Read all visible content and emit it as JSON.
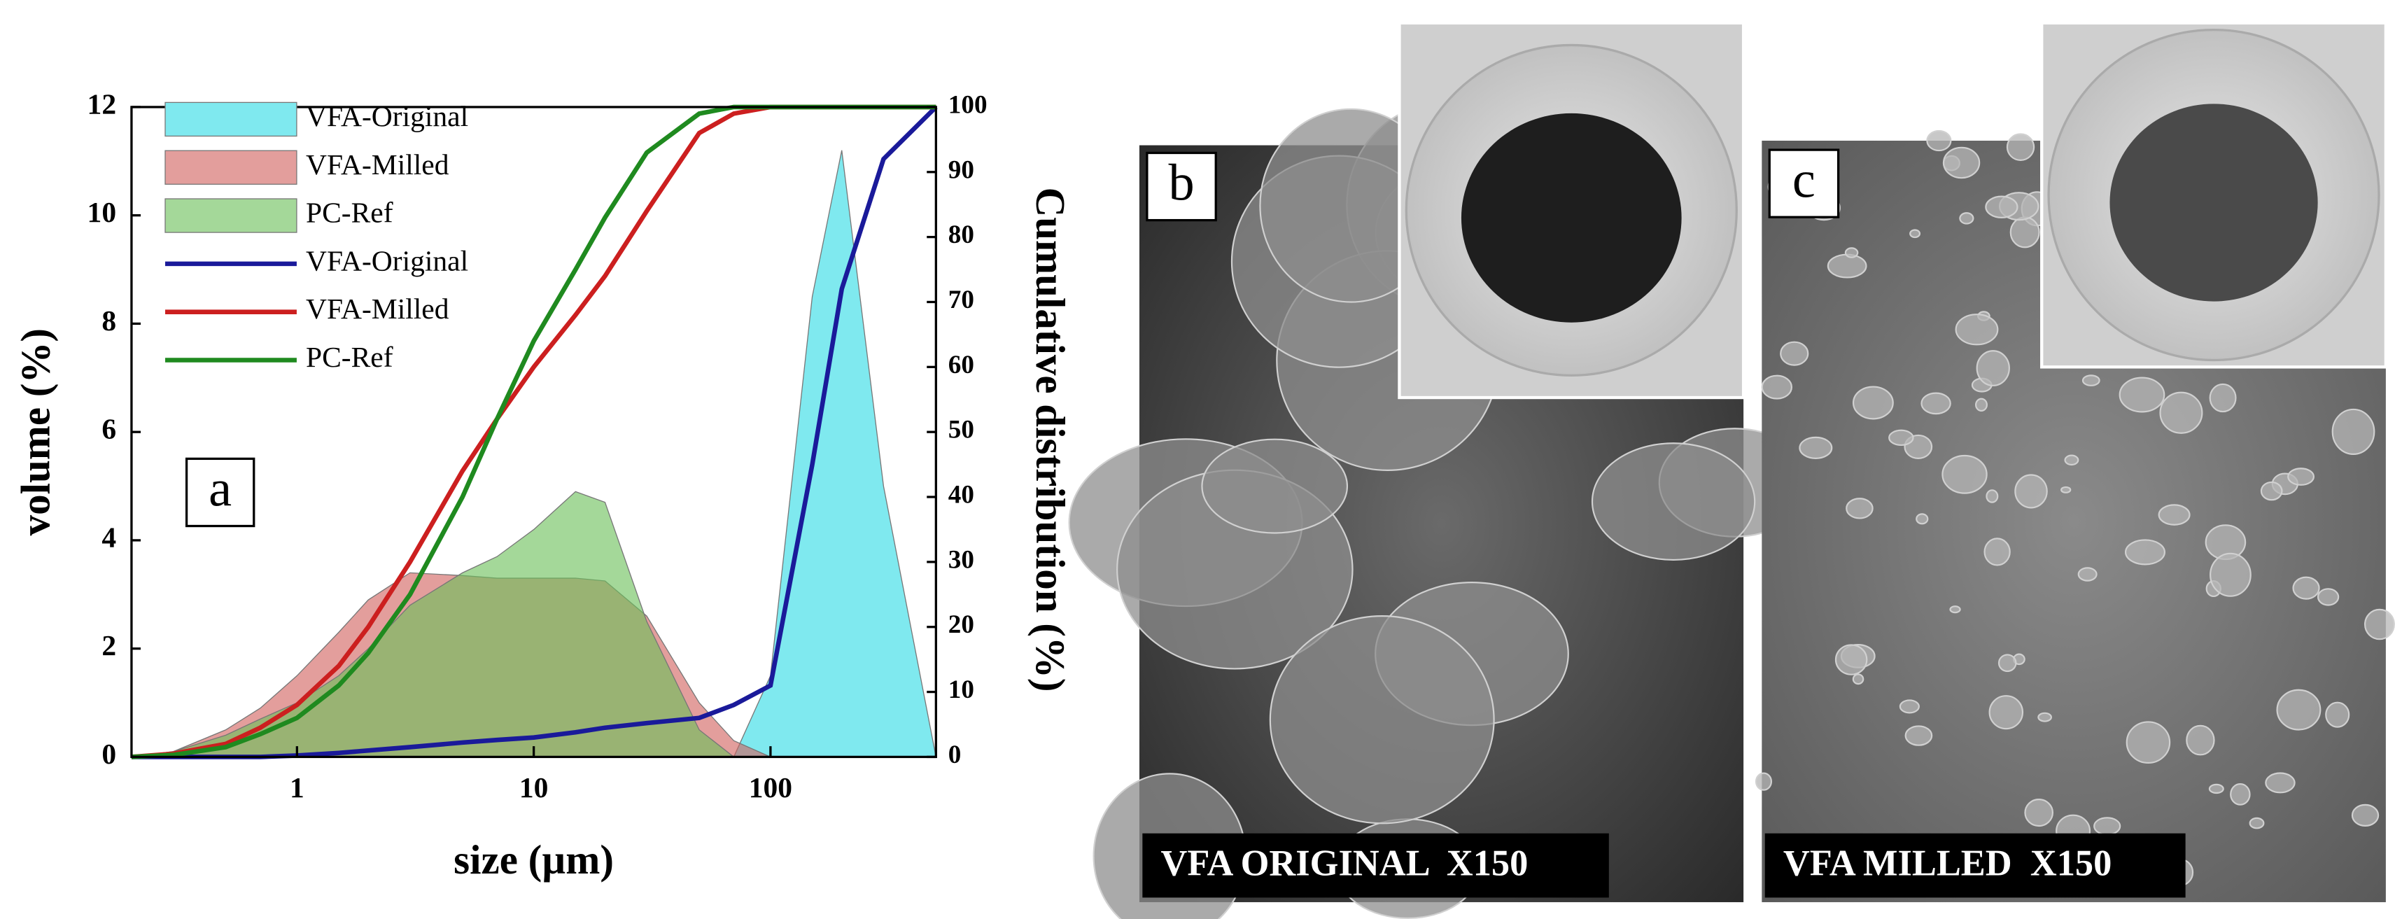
{
  "chart_data": {
    "type": "line",
    "panel_label": "a",
    "x_label": "size (µm)",
    "y_label": "volume (%)",
    "y2_label": "Cumulative distribution (%)",
    "x_log": true,
    "xlim": [
      0.2,
      500
    ],
    "xticks": [
      1,
      10,
      100
    ],
    "ylim": [
      0,
      12
    ],
    "yticks": [
      0,
      2,
      4,
      6,
      8,
      10,
      12
    ],
    "y2lim": [
      0,
      100
    ],
    "y2ticks": [
      0,
      10,
      20,
      30,
      40,
      50,
      60,
      70,
      80,
      90,
      100
    ],
    "legend": "upper-left",
    "x": [
      0.2,
      0.3,
      0.5,
      0.7,
      1,
      1.5,
      2,
      3,
      5,
      7,
      10,
      15,
      20,
      30,
      50,
      70,
      100,
      150,
      200,
      300,
      500
    ],
    "series": [
      {
        "name": "VFA-Original",
        "color": "#7fe9ef",
        "fill": true,
        "axis": "y",
        "values": [
          0,
          0,
          0,
          0,
          0,
          0,
          0,
          0,
          0,
          0,
          0,
          0,
          0,
          0,
          0,
          0,
          1.5,
          8.5,
          11.2,
          5,
          0
        ]
      },
      {
        "name": "VFA-Milled",
        "color": "#d2625f",
        "fill": true,
        "axis": "y",
        "values": [
          0,
          0.1,
          0.5,
          0.9,
          1.5,
          2.3,
          2.9,
          3.4,
          3.35,
          3.3,
          3.3,
          3.3,
          3.25,
          2.6,
          1.0,
          0.3,
          0,
          0,
          0,
          0,
          0
        ]
      },
      {
        "name": "PC-Ref",
        "color": "#6cc05a",
        "fill": true,
        "axis": "y",
        "values": [
          0,
          0.1,
          0.4,
          0.7,
          1.0,
          1.5,
          2.0,
          2.8,
          3.4,
          3.7,
          4.2,
          4.9,
          4.7,
          2.5,
          0.5,
          0,
          0,
          0,
          0,
          0,
          0
        ]
      },
      {
        "name": "VFA-Original",
        "color": "#1a1a9a",
        "fill": false,
        "axis": "y2",
        "values": [
          0,
          0,
          0,
          0,
          0.2,
          0.6,
          1,
          1.5,
          2.2,
          2.6,
          3,
          3.8,
          4.5,
          5.2,
          6,
          8,
          11,
          45,
          72,
          92,
          100
        ]
      },
      {
        "name": "VFA-Milled",
        "color": "#cc1f1f",
        "fill": false,
        "axis": "y2",
        "values": [
          0,
          0.5,
          2,
          4.5,
          8,
          14,
          20,
          30,
          44,
          52,
          60,
          68,
          74,
          84,
          96,
          99,
          100,
          100,
          100,
          100,
          100
        ]
      },
      {
        "name": "PC-Ref",
        "color": "#1f8a1f",
        "fill": false,
        "axis": "y2",
        "values": [
          0,
          0.3,
          1.5,
          3.5,
          6,
          11,
          16,
          25,
          40,
          52,
          64,
          75,
          83,
          93,
          99,
          100,
          100,
          100,
          100,
          100,
          100
        ]
      }
    ]
  },
  "panels": [
    {
      "label": "b",
      "caption": "VFA ORIGINAL  X150"
    },
    {
      "label": "c",
      "caption": "VFA MILLED  X150"
    }
  ]
}
